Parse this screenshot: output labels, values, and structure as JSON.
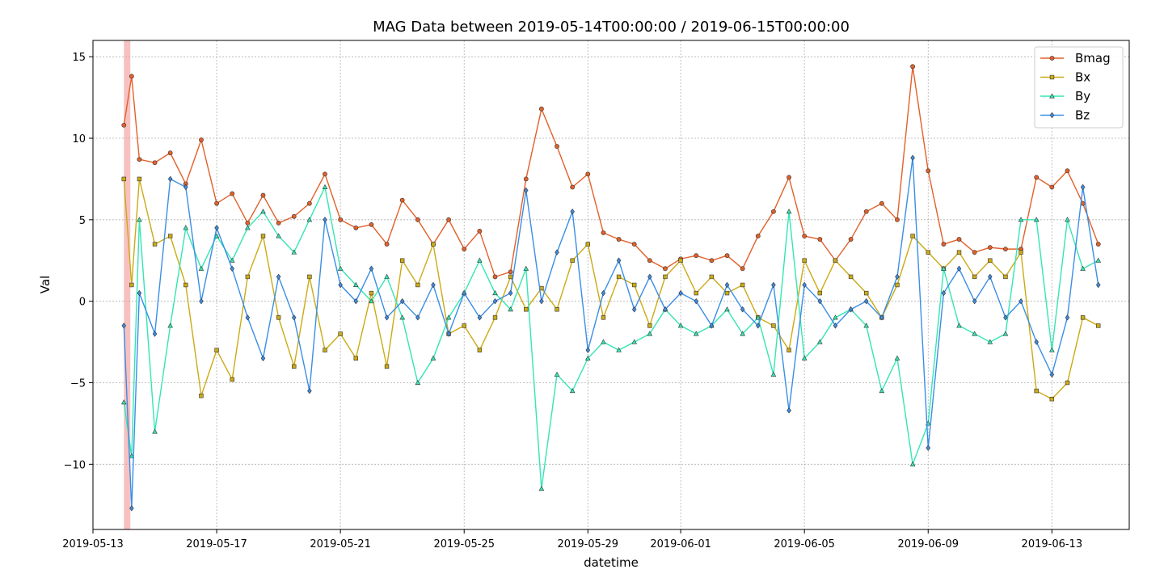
{
  "chart_data": {
    "type": "line",
    "title": "MAG Data between 2019-05-14T00:00:00 / 2019-06-15T00:00:00",
    "xlabel": "datetime",
    "ylabel": "Val",
    "xlim": [
      "2019-05-13T00:00:00",
      "2019-06-15T12:00:00"
    ],
    "ylim": [
      -14,
      16
    ],
    "x_ticks": [
      "2019-05-13",
      "2019-05-17",
      "2019-05-21",
      "2019-05-25",
      "2019-05-29",
      "2019-06-01",
      "2019-06-05",
      "2019-06-09",
      "2019-06-13"
    ],
    "y_ticks": [
      15,
      10,
      5,
      0,
      -5,
      -10
    ],
    "y_tick_labels": [
      "15",
      "10",
      "5",
      "0",
      "−5",
      "−10"
    ],
    "grid": true,
    "legend_position": "top-right",
    "highlight_span": [
      "2019-05-14T00:00:00",
      "2019-05-14T05:00:00"
    ],
    "highlight_color": "#f4a6a6",
    "series": [
      {
        "name": "Bmag",
        "color": "#e2602a",
        "marker": "circle",
        "x": [
          "2019-05-14",
          "2019-05-14T06:00",
          "2019-05-14T12:00",
          "2019-05-15",
          "2019-05-15T12:00",
          "2019-05-16",
          "2019-05-16T12:00",
          "2019-05-17",
          "2019-05-17T12:00",
          "2019-05-18",
          "2019-05-18T12:00",
          "2019-05-19",
          "2019-05-19T12:00",
          "2019-05-20",
          "2019-05-20T12:00",
          "2019-05-21",
          "2019-05-21T12:00",
          "2019-05-22",
          "2019-05-22T12:00",
          "2019-05-23",
          "2019-05-23T12:00",
          "2019-05-24",
          "2019-05-24T12:00",
          "2019-05-25",
          "2019-05-25T12:00",
          "2019-05-26",
          "2019-05-26T12:00",
          "2019-05-27",
          "2019-05-27T12:00",
          "2019-05-28",
          "2019-05-28T12:00",
          "2019-05-29",
          "2019-05-29T12:00",
          "2019-05-30",
          "2019-05-30T12:00",
          "2019-05-31",
          "2019-05-31T12:00",
          "2019-06-01",
          "2019-06-01T12:00",
          "2019-06-02",
          "2019-06-02T12:00",
          "2019-06-03",
          "2019-06-03T12:00",
          "2019-06-04",
          "2019-06-04T12:00",
          "2019-06-05",
          "2019-06-05T12:00",
          "2019-06-06",
          "2019-06-06T12:00",
          "2019-06-07",
          "2019-06-07T12:00",
          "2019-06-08",
          "2019-06-08T12:00",
          "2019-06-09",
          "2019-06-09T12:00",
          "2019-06-10",
          "2019-06-10T12:00",
          "2019-06-11",
          "2019-06-11T12:00",
          "2019-06-12",
          "2019-06-12T12:00",
          "2019-06-13",
          "2019-06-13T12:00",
          "2019-06-14",
          "2019-06-14T12:00"
        ],
        "y": [
          10.8,
          13.8,
          8.7,
          8.5,
          9.1,
          7.2,
          9.9,
          6.0,
          6.6,
          4.8,
          6.5,
          4.8,
          5.2,
          6.0,
          7.8,
          5.0,
          4.5,
          4.7,
          3.5,
          6.2,
          5.0,
          3.5,
          5.0,
          3.2,
          4.3,
          1.5,
          1.8,
          7.5,
          11.8,
          9.5,
          7.0,
          7.8,
          4.2,
          3.8,
          3.5,
          2.5,
          2.0,
          2.6,
          2.8,
          2.5,
          2.8,
          2.0,
          4.0,
          5.5,
          7.6,
          4.0,
          3.8,
          2.5,
          3.8,
          5.5,
          6.0,
          5.0,
          14.4,
          8.0,
          3.5,
          3.8,
          3.0,
          3.3,
          3.2,
          3.2,
          7.6,
          7.0,
          8.0,
          6.0,
          3.5
        ]
      },
      {
        "name": "Bx",
        "color": "#ccaa14",
        "marker": "square",
        "x": [
          "2019-05-14",
          "2019-05-14T06:00",
          "2019-05-14T12:00",
          "2019-05-15",
          "2019-05-15T12:00",
          "2019-05-16",
          "2019-05-16T12:00",
          "2019-05-17",
          "2019-05-17T12:00",
          "2019-05-18",
          "2019-05-18T12:00",
          "2019-05-19",
          "2019-05-19T12:00",
          "2019-05-20",
          "2019-05-20T12:00",
          "2019-05-21",
          "2019-05-21T12:00",
          "2019-05-22",
          "2019-05-22T12:00",
          "2019-05-23",
          "2019-05-23T12:00",
          "2019-05-24",
          "2019-05-24T12:00",
          "2019-05-25",
          "2019-05-25T12:00",
          "2019-05-26",
          "2019-05-26T12:00",
          "2019-05-27",
          "2019-05-27T12:00",
          "2019-05-28",
          "2019-05-28T12:00",
          "2019-05-29",
          "2019-05-29T12:00",
          "2019-05-30",
          "2019-05-30T12:00",
          "2019-05-31",
          "2019-05-31T12:00",
          "2019-06-01",
          "2019-06-01T12:00",
          "2019-06-02",
          "2019-06-02T12:00",
          "2019-06-03",
          "2019-06-03T12:00",
          "2019-06-04",
          "2019-06-04T12:00",
          "2019-06-05",
          "2019-06-05T12:00",
          "2019-06-06",
          "2019-06-06T12:00",
          "2019-06-07",
          "2019-06-07T12:00",
          "2019-06-08",
          "2019-06-08T12:00",
          "2019-06-09",
          "2019-06-09T12:00",
          "2019-06-10",
          "2019-06-10T12:00",
          "2019-06-11",
          "2019-06-11T12:00",
          "2019-06-12",
          "2019-06-12T12:00",
          "2019-06-13",
          "2019-06-13T12:00",
          "2019-06-14",
          "2019-06-14T12:00"
        ],
        "y": [
          7.5,
          1.0,
          7.5,
          3.5,
          4.0,
          1.0,
          -5.8,
          -3.0,
          -4.8,
          1.5,
          4.0,
          -1.0,
          -4.0,
          1.5,
          -3.0,
          -2.0,
          -3.5,
          0.5,
          -4.0,
          2.5,
          1.0,
          3.5,
          -2.0,
          -1.5,
          -3.0,
          -1.0,
          1.5,
          -0.5,
          0.8,
          -0.5,
          2.5,
          3.5,
          -1.0,
          1.5,
          1.0,
          -1.5,
          1.5,
          2.5,
          0.5,
          1.5,
          0.5,
          1.0,
          -1.0,
          -1.5,
          -3.0,
          2.5,
          0.5,
          2.5,
          1.5,
          0.5,
          -1.0,
          1.0,
          4.0,
          3.0,
          2.0,
          3.0,
          1.5,
          2.5,
          1.5,
          3.0,
          -5.5,
          -6.0,
          -5.0,
          -1.0,
          -1.5
        ]
      },
      {
        "name": "By",
        "color": "#33e6b4",
        "marker": "triangle",
        "x": [
          "2019-05-14",
          "2019-05-14T06:00",
          "2019-05-14T12:00",
          "2019-05-15",
          "2019-05-15T12:00",
          "2019-05-16",
          "2019-05-16T12:00",
          "2019-05-17",
          "2019-05-17T12:00",
          "2019-05-18",
          "2019-05-18T12:00",
          "2019-05-19",
          "2019-05-19T12:00",
          "2019-05-20",
          "2019-05-20T12:00",
          "2019-05-21",
          "2019-05-21T12:00",
          "2019-05-22",
          "2019-05-22T12:00",
          "2019-05-23",
          "2019-05-23T12:00",
          "2019-05-24",
          "2019-05-24T12:00",
          "2019-05-25",
          "2019-05-25T12:00",
          "2019-05-26",
          "2019-05-26T12:00",
          "2019-05-27",
          "2019-05-27T12:00",
          "2019-05-28",
          "2019-05-28T12:00",
          "2019-05-29",
          "2019-05-29T12:00",
          "2019-05-30",
          "2019-05-30T12:00",
          "2019-05-31",
          "2019-05-31T12:00",
          "2019-06-01",
          "2019-06-01T12:00",
          "2019-06-02",
          "2019-06-02T12:00",
          "2019-06-03",
          "2019-06-03T12:00",
          "2019-06-04",
          "2019-06-04T12:00",
          "2019-06-05",
          "2019-06-05T12:00",
          "2019-06-06",
          "2019-06-06T12:00",
          "2019-06-07",
          "2019-06-07T12:00",
          "2019-06-08",
          "2019-06-08T12:00",
          "2019-06-09",
          "2019-06-09T12:00",
          "2019-06-10",
          "2019-06-10T12:00",
          "2019-06-11",
          "2019-06-11T12:00",
          "2019-06-12",
          "2019-06-12T12:00",
          "2019-06-13",
          "2019-06-13T12:00",
          "2019-06-14",
          "2019-06-14T12:00"
        ],
        "y": [
          -6.2,
          -9.5,
          5.0,
          -8.0,
          -1.5,
          4.5,
          2.0,
          4.0,
          2.5,
          4.5,
          5.5,
          4.0,
          3.0,
          5.0,
          7.0,
          2.0,
          1.0,
          0.0,
          1.5,
          -1.0,
          -5.0,
          -3.5,
          -1.0,
          0.5,
          2.5,
          0.5,
          -0.5,
          2.0,
          -11.5,
          -4.5,
          -5.5,
          -3.5,
          -2.5,
          -3.0,
          -2.5,
          -2.0,
          -0.5,
          -1.5,
          -2.0,
          -1.5,
          -0.5,
          -2.0,
          -1.0,
          -4.5,
          5.5,
          -3.5,
          -2.5,
          -1.0,
          -0.5,
          -1.5,
          -5.5,
          -3.5,
          -10.0,
          -7.5,
          2.0,
          -1.5,
          -2.0,
          -2.5,
          -2.0,
          5.0,
          5.0,
          -3.0,
          5.0,
          2.0,
          2.5
        ]
      },
      {
        "name": "Bz",
        "color": "#3a8ee6",
        "marker": "diamond",
        "x": [
          "2019-05-14",
          "2019-05-14T06:00",
          "2019-05-14T12:00",
          "2019-05-15",
          "2019-05-15T12:00",
          "2019-05-16",
          "2019-05-16T12:00",
          "2019-05-17",
          "2019-05-17T12:00",
          "2019-05-18",
          "2019-05-18T12:00",
          "2019-05-19",
          "2019-05-19T12:00",
          "2019-05-20",
          "2019-05-20T12:00",
          "2019-05-21",
          "2019-05-21T12:00",
          "2019-05-22",
          "2019-05-22T12:00",
          "2019-05-23",
          "2019-05-23T12:00",
          "2019-05-24",
          "2019-05-24T12:00",
          "2019-05-25",
          "2019-05-25T12:00",
          "2019-05-26",
          "2019-05-26T12:00",
          "2019-05-27",
          "2019-05-27T12:00",
          "2019-05-28",
          "2019-05-28T12:00",
          "2019-05-29",
          "2019-05-29T12:00",
          "2019-05-30",
          "2019-05-30T12:00",
          "2019-05-31",
          "2019-05-31T12:00",
          "2019-06-01",
          "2019-06-01T12:00",
          "2019-06-02",
          "2019-06-02T12:00",
          "2019-06-03",
          "2019-06-03T12:00",
          "2019-06-04",
          "2019-06-04T12:00",
          "2019-06-05",
          "2019-06-05T12:00",
          "2019-06-06",
          "2019-06-06T12:00",
          "2019-06-07",
          "2019-06-07T12:00",
          "2019-06-08",
          "2019-06-08T12:00",
          "2019-06-09",
          "2019-06-09T12:00",
          "2019-06-10",
          "2019-06-10T12:00",
          "2019-06-11",
          "2019-06-11T12:00",
          "2019-06-12",
          "2019-06-12T12:00",
          "2019-06-13",
          "2019-06-13T12:00",
          "2019-06-14",
          "2019-06-14T12:00"
        ],
        "y": [
          -1.5,
          -12.7,
          0.5,
          -2.0,
          7.5,
          7.0,
          0.0,
          4.5,
          2.0,
          -1.0,
          -3.5,
          1.5,
          -1.0,
          -5.5,
          5.0,
          1.0,
          0.0,
          2.0,
          -1.0,
          0.0,
          -1.0,
          1.0,
          -2.0,
          0.5,
          -1.0,
          0.0,
          0.5,
          6.8,
          0.0,
          3.0,
          5.5,
          -3.0,
          0.5,
          2.5,
          -0.5,
          1.5,
          -0.5,
          0.5,
          0.0,
          -1.5,
          1.0,
          -0.5,
          -1.5,
          1.0,
          -6.7,
          1.0,
          0.0,
          -1.5,
          -0.5,
          0.0,
          -1.0,
          1.5,
          8.8,
          -9.0,
          0.5,
          2.0,
          0.0,
          1.5,
          -1.0,
          0.0,
          -2.5,
          -4.5,
          -1.0,
          7.0,
          1.0
        ]
      }
    ]
  }
}
